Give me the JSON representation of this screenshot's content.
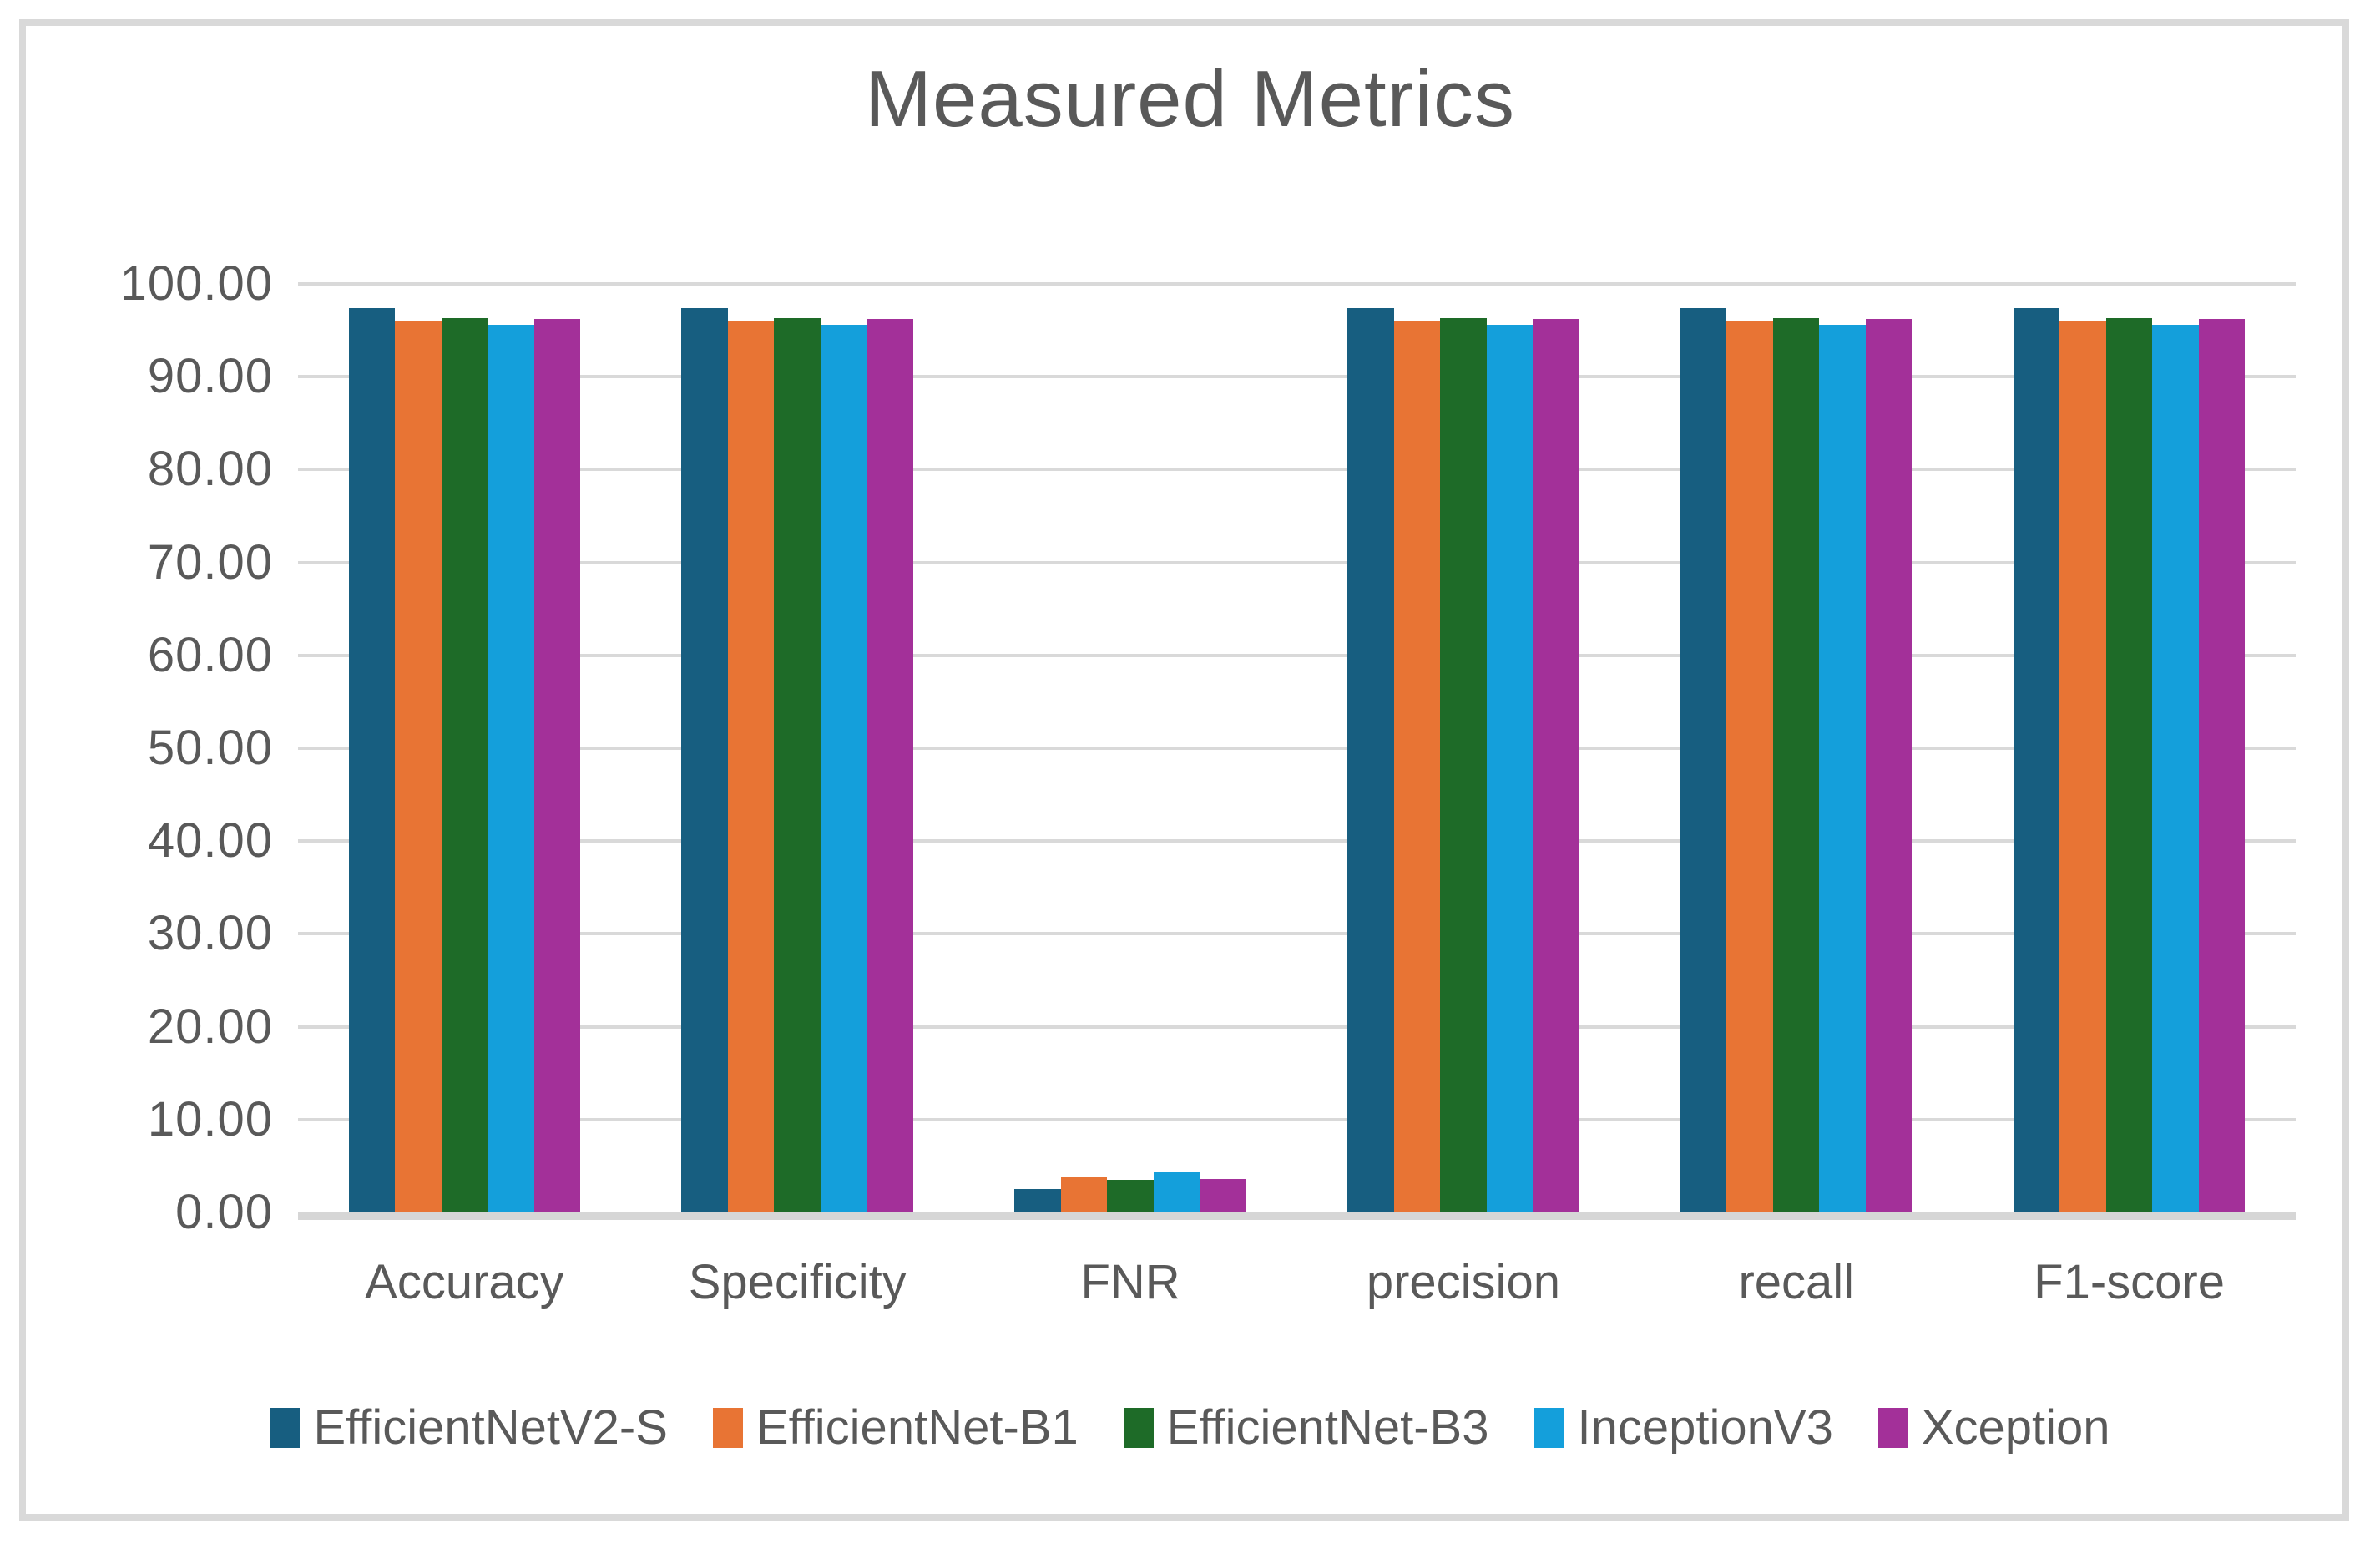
{
  "chart_data": {
    "type": "bar",
    "title": "Measured Metrics",
    "categories": [
      "Accuracy",
      "Specificity",
      "FNR",
      "precision",
      "recall",
      "F1-score"
    ],
    "series": [
      {
        "name": "EfficientNetV2-S",
        "color": "#175E80",
        "values": [
          97.4,
          97.4,
          2.5,
          97.4,
          97.4,
          97.4
        ]
      },
      {
        "name": "EfficientNet-B1",
        "color": "#E87434",
        "values": [
          96.0,
          96.0,
          3.9,
          96.0,
          96.0,
          96.0
        ]
      },
      {
        "name": "EfficientNet-B3",
        "color": "#1E6B28",
        "values": [
          96.3,
          96.3,
          3.5,
          96.3,
          96.3,
          96.3
        ]
      },
      {
        "name": "InceptionV3",
        "color": "#149FDB",
        "values": [
          95.6,
          95.6,
          4.3,
          95.6,
          95.6,
          95.6
        ]
      },
      {
        "name": "Xception",
        "color": "#A33099",
        "values": [
          96.2,
          96.2,
          3.6,
          96.2,
          96.2,
          96.2
        ]
      }
    ],
    "xlabel": "",
    "ylabel": "",
    "ylim": [
      0,
      100
    ],
    "ytick_step": 10,
    "ytick_labels": [
      "100.00",
      "90.00",
      "80.00",
      "70.00",
      "60.00",
      "50.00",
      "40.00",
      "30.00",
      "20.00",
      "10.00",
      "0.00"
    ],
    "grid": "horizontal",
    "legend_position": "bottom"
  },
  "style": {
    "frame_border_color": "#D9D9D9",
    "gridline_color": "#D9D9D9",
    "text_color": "#595959",
    "background": "#FFFFFF"
  }
}
